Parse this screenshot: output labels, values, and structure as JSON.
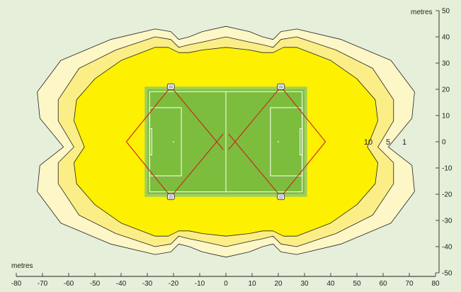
{
  "colors": {
    "background": "#e6efd9",
    "zone_1": "#fdf6c6",
    "zone_5": "#fbee86",
    "zone_10": "#fdf000",
    "pitch_outer": "#9fcf5b",
    "pitch_inner": "#7cbd3d",
    "aim_lines": "#cc2222"
  },
  "axes": {
    "x_unit": "metres",
    "y_unit": "metres",
    "x_ticks": [
      "-80",
      "-70",
      "-60",
      "-50",
      "-40",
      "-30",
      "-20",
      "-10",
      "0",
      "10",
      "20",
      "30",
      "40",
      "50",
      "60",
      "70",
      "80"
    ],
    "y_ticks": [
      "50",
      "40",
      "30",
      "20",
      "10",
      "0",
      "-10",
      "-20",
      "-30",
      "-40",
      "-50"
    ]
  },
  "contour_labels": [
    "10",
    "5",
    "1"
  ],
  "contours": [
    {
      "level": "1",
      "points": [
        [
          -62,
          -2
        ],
        [
          -71,
          -9
        ],
        [
          -72,
          -19
        ],
        [
          -63,
          -31
        ],
        [
          -44,
          -39
        ],
        [
          -27,
          -43
        ],
        [
          -21,
          -42
        ],
        [
          -18,
          -39
        ],
        [
          -14,
          -40
        ],
        [
          -9,
          -42
        ],
        [
          0,
          -44
        ],
        [
          9,
          -42
        ],
        [
          14,
          -40
        ],
        [
          18,
          -39
        ],
        [
          21,
          -42
        ],
        [
          27,
          -43
        ],
        [
          44,
          -39
        ],
        [
          63,
          -31
        ],
        [
          72,
          -19
        ],
        [
          71,
          -9
        ],
        [
          62,
          -2
        ],
        [
          71,
          9
        ],
        [
          72,
          19
        ],
        [
          63,
          31
        ],
        [
          44,
          39
        ],
        [
          27,
          43
        ],
        [
          21,
          42
        ],
        [
          18,
          39
        ],
        [
          14,
          40
        ],
        [
          9,
          42
        ],
        [
          0,
          44
        ],
        [
          -9,
          42
        ],
        [
          -14,
          40
        ],
        [
          -18,
          39
        ],
        [
          -21,
          42
        ],
        [
          -27,
          43
        ],
        [
          -44,
          39
        ],
        [
          -63,
          31
        ],
        [
          -72,
          19
        ],
        [
          -71,
          9
        ]
      ]
    },
    {
      "level": "5",
      "points": [
        [
          -58,
          -2
        ],
        [
          -64,
          -8
        ],
        [
          -64,
          -16
        ],
        [
          -56,
          -28
        ],
        [
          -42,
          -35
        ],
        [
          -27,
          -40
        ],
        [
          -21,
          -39
        ],
        [
          -18,
          -36
        ],
        [
          -14,
          -37
        ],
        [
          -9,
          -38
        ],
        [
          0,
          -40
        ],
        [
          9,
          -38
        ],
        [
          14,
          -37
        ],
        [
          18,
          -36
        ],
        [
          21,
          -39
        ],
        [
          27,
          -40
        ],
        [
          42,
          -35
        ],
        [
          56,
          -28
        ],
        [
          64,
          -16
        ],
        [
          64,
          -8
        ],
        [
          58,
          -2
        ],
        [
          64,
          8
        ],
        [
          64,
          16
        ],
        [
          56,
          28
        ],
        [
          42,
          35
        ],
        [
          27,
          40
        ],
        [
          21,
          39
        ],
        [
          18,
          36
        ],
        [
          14,
          37
        ],
        [
          9,
          38
        ],
        [
          0,
          40
        ],
        [
          -9,
          38
        ],
        [
          -14,
          37
        ],
        [
          -18,
          36
        ],
        [
          -21,
          39
        ],
        [
          -27,
          40
        ],
        [
          -42,
          35
        ],
        [
          -56,
          28
        ],
        [
          -64,
          16
        ],
        [
          -64,
          8
        ]
      ]
    },
    {
      "level": "10",
      "points": [
        [
          -54,
          -2
        ],
        [
          -58,
          -8
        ],
        [
          -57,
          -16
        ],
        [
          -50,
          -24
        ],
        [
          -40,
          -31
        ],
        [
          -27,
          -36
        ],
        [
          -22,
          -36
        ],
        [
          -18,
          -34
        ],
        [
          -14,
          -34
        ],
        [
          -9,
          -35
        ],
        [
          0,
          -36
        ],
        [
          9,
          -35
        ],
        [
          14,
          -34
        ],
        [
          18,
          -34
        ],
        [
          22,
          -36
        ],
        [
          27,
          -36
        ],
        [
          40,
          -31
        ],
        [
          50,
          -24
        ],
        [
          57,
          -16
        ],
        [
          58,
          -8
        ],
        [
          54,
          -2
        ],
        [
          58,
          8
        ],
        [
          57,
          16
        ],
        [
          50,
          24
        ],
        [
          40,
          31
        ],
        [
          27,
          36
        ],
        [
          22,
          36
        ],
        [
          18,
          34
        ],
        [
          14,
          34
        ],
        [
          9,
          35
        ],
        [
          0,
          36
        ],
        [
          -9,
          35
        ],
        [
          -14,
          34
        ],
        [
          -18,
          34
        ],
        [
          -22,
          36
        ],
        [
          -27,
          36
        ],
        [
          -40,
          31
        ],
        [
          -50,
          24
        ],
        [
          -57,
          16
        ],
        [
          -58,
          8
        ]
      ]
    }
  ],
  "pitch": {
    "x_range": [
      -31,
      31
    ],
    "y_range": [
      -21,
      21
    ]
  },
  "lights": [
    {
      "id": "top-left",
      "x": -21,
      "y": 21,
      "aim": [
        [
          -38,
          0
        ],
        [
          -1,
          -3
        ]
      ]
    },
    {
      "id": "top-right",
      "x": 21,
      "y": 21,
      "aim": [
        [
          38,
          0
        ],
        [
          1,
          -3
        ]
      ]
    },
    {
      "id": "bottom-left",
      "x": -21,
      "y": -21,
      "aim": [
        [
          -38,
          0
        ],
        [
          -1,
          3
        ]
      ]
    },
    {
      "id": "bottom-right",
      "x": 21,
      "y": -21,
      "aim": [
        [
          38,
          0
        ],
        [
          1,
          3
        ]
      ]
    }
  ]
}
